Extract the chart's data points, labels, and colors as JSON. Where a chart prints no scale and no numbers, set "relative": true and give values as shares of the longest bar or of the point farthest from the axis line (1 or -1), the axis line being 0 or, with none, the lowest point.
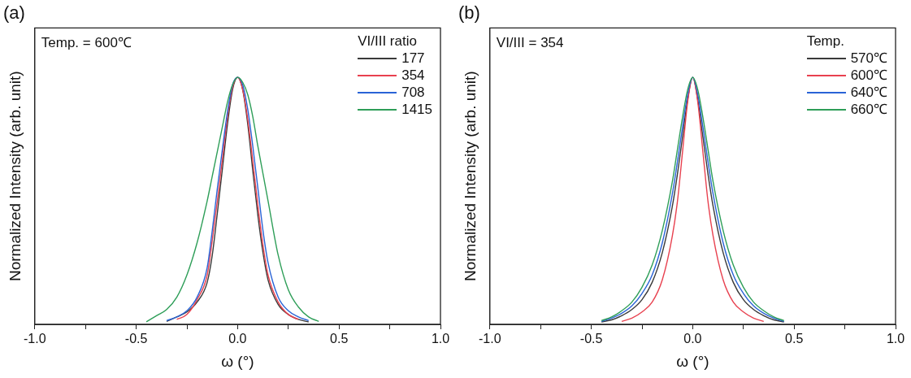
{
  "chart_data": [
    {
      "type": "line",
      "title": "(a)",
      "xlabel": "ω (°)",
      "ylabel": "Normalized Intensity (arb. unit)",
      "relative": true,
      "legend": "top right",
      "legend_title": "VI/III ratio",
      "marker": "none",
      "line_style": "solid",
      "annotations": [
        "Temp. = 600℃"
      ],
      "xlim": [
        -1,
        1
      ],
      "xticks": [
        {
          "value": -1,
          "label": "-1.0"
        },
        {
          "value": -0.75,
          "label": null
        },
        {
          "value": -0.5,
          "label": "-0.5"
        },
        {
          "value": -0.25,
          "label": null
        },
        {
          "value": 0,
          "label": "0.0"
        },
        {
          "value": 0.25,
          "label": null
        },
        {
          "value": 0.5,
          "label": "0.5"
        },
        {
          "value": 0.75,
          "label": null
        },
        {
          "value": 1,
          "label": "1.0"
        }
      ],
      "x": [
        -0.45,
        -0.4,
        -0.35,
        -0.3,
        -0.25,
        -0.2,
        -0.15,
        -0.125,
        -0.1,
        -0.075,
        -0.05,
        -0.025,
        0,
        0.025,
        0.05,
        0.075,
        0.1,
        0.125,
        0.15,
        0.2,
        0.25,
        0.3,
        0.35,
        0.4
      ],
      "series": [
        {
          "name": "177",
          "color": "#3a3a3a",
          "values": [
            null,
            null,
            0.012,
            0.03,
            0.05,
            0.09,
            0.17,
            0.28,
            0.45,
            0.63,
            0.81,
            0.95,
            1,
            0.95,
            0.81,
            0.62,
            0.44,
            0.29,
            0.18,
            0.08,
            0.04,
            0.02,
            0.01,
            null
          ]
        },
        {
          "name": "354",
          "color": "#e8414f",
          "values": [
            null,
            null,
            null,
            0.02,
            0.04,
            0.1,
            0.2,
            0.34,
            0.5,
            0.67,
            0.84,
            0.96,
            1,
            0.95,
            0.83,
            0.66,
            0.48,
            0.32,
            0.2,
            0.09,
            0.04,
            0.02,
            null,
            null
          ]
        },
        {
          "name": "708",
          "color": "#2a63d6",
          "values": [
            null,
            null,
            0.015,
            0.03,
            0.055,
            0.11,
            0.23,
            0.38,
            0.55,
            0.71,
            0.86,
            0.97,
            1,
            0.97,
            0.87,
            0.72,
            0.55,
            0.38,
            0.25,
            0.11,
            0.055,
            0.03,
            0.015,
            null
          ]
        },
        {
          "name": "1415",
          "color": "#2e9e58",
          "values": [
            0.01,
            0.035,
            0.06,
            0.11,
            0.2,
            0.33,
            0.5,
            0.6,
            0.7,
            0.8,
            0.9,
            0.97,
            1,
            0.98,
            0.93,
            0.84,
            0.72,
            0.61,
            0.5,
            0.28,
            0.14,
            0.07,
            0.03,
            0.012
          ]
        }
      ]
    },
    {
      "type": "line",
      "title": "(b)",
      "xlabel": "ω (°)",
      "ylabel": "Normalized Intensity (arb. unit)",
      "relative": true,
      "legend": "top right",
      "legend_title": "Temp.",
      "marker": "none",
      "line_style": "solid",
      "annotations": [
        "VI/III = 354"
      ],
      "xlim": [
        -1,
        1
      ],
      "xticks": [
        {
          "value": -1,
          "label": "-1.0"
        },
        {
          "value": -0.75,
          "label": null
        },
        {
          "value": -0.5,
          "label": "-0.5"
        },
        {
          "value": -0.25,
          "label": null
        },
        {
          "value": 0,
          "label": "0.0"
        },
        {
          "value": 0.25,
          "label": null
        },
        {
          "value": 0.5,
          "label": "0.5"
        },
        {
          "value": 0.75,
          "label": null
        },
        {
          "value": 1,
          "label": "1.0"
        }
      ],
      "x": [
        -0.45,
        -0.4,
        -0.35,
        -0.3,
        -0.25,
        -0.2,
        -0.15,
        -0.1,
        -0.075,
        -0.05,
        -0.025,
        0,
        0.025,
        0.05,
        0.075,
        0.1,
        0.15,
        0.2,
        0.25,
        0.3,
        0.35,
        0.4,
        0.45
      ],
      "series": [
        {
          "name": "570℃",
          "color": "#3a3a3a",
          "values": [
            0.01,
            0.018,
            0.035,
            0.06,
            0.1,
            0.17,
            0.29,
            0.48,
            0.61,
            0.76,
            0.91,
            1,
            0.91,
            0.76,
            0.61,
            0.48,
            0.29,
            0.17,
            0.1,
            0.06,
            0.035,
            0.018,
            0.01
          ]
        },
        {
          "name": "600℃",
          "color": "#e8414f",
          "values": [
            null,
            null,
            0.012,
            0.025,
            0.05,
            0.09,
            0.18,
            0.36,
            0.5,
            0.7,
            0.9,
            1,
            0.9,
            0.7,
            0.5,
            0.36,
            0.18,
            0.09,
            0.05,
            0.025,
            0.012,
            null,
            null
          ]
        },
        {
          "name": "640℃",
          "color": "#2a63d6",
          "values": [
            0.012,
            0.025,
            0.045,
            0.075,
            0.125,
            0.2,
            0.33,
            0.53,
            0.66,
            0.8,
            0.93,
            1,
            0.93,
            0.8,
            0.66,
            0.53,
            0.33,
            0.2,
            0.125,
            0.075,
            0.045,
            0.025,
            0.012
          ]
        },
        {
          "name": "660℃",
          "color": "#2e9e58",
          "values": [
            0.015,
            0.03,
            0.055,
            0.09,
            0.15,
            0.24,
            0.38,
            0.58,
            0.71,
            0.84,
            0.95,
            1,
            0.95,
            0.84,
            0.71,
            0.58,
            0.38,
            0.24,
            0.15,
            0.09,
            0.055,
            0.03,
            0.015
          ]
        }
      ]
    }
  ]
}
